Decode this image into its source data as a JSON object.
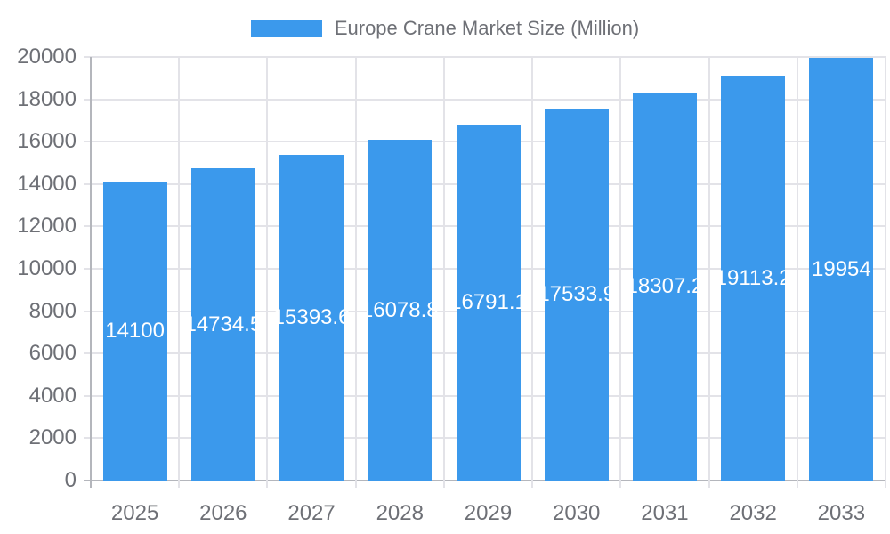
{
  "legend": {
    "label": "Europe Crane Market Size (Million)"
  },
  "colors": {
    "bar": "#3B99EC",
    "bar_label_text": "#FFFFFF",
    "grid_line": "#E3E3E8",
    "axis_line": "#B4B6BC",
    "axis_text": "#6E7076",
    "background": "#FFFFFF"
  },
  "chart_data": {
    "type": "bar",
    "title": "Europe Crane Market Size (Million)",
    "legend_position": "top-center",
    "grid": true,
    "bar_labels_position": "inside-center",
    "categories": [
      "2025",
      "2026",
      "2027",
      "2028",
      "2029",
      "2030",
      "2031",
      "2032",
      "2033"
    ],
    "series": [
      {
        "name": "Europe Crane Market Size (Million)",
        "values": [
          14100,
          14734.5,
          15393.6,
          16078.8,
          16791.1,
          17533.9,
          18307.2,
          19113.2,
          19954
        ]
      }
    ],
    "bar_labels": [
      "14100",
      "14734.5",
      "15393.6",
      "16078.8",
      "16791.1",
      "17533.9",
      "18307.2",
      "19113.2",
      "19954"
    ],
    "xlabel": "",
    "ylabel": "",
    "y_axis": {
      "min": 0,
      "max": 20000,
      "step": 2000,
      "tick_labels": [
        "0",
        "2000",
        "4000",
        "6000",
        "8000",
        "10000",
        "12000",
        "14000",
        "16000",
        "18000",
        "20000"
      ]
    }
  }
}
